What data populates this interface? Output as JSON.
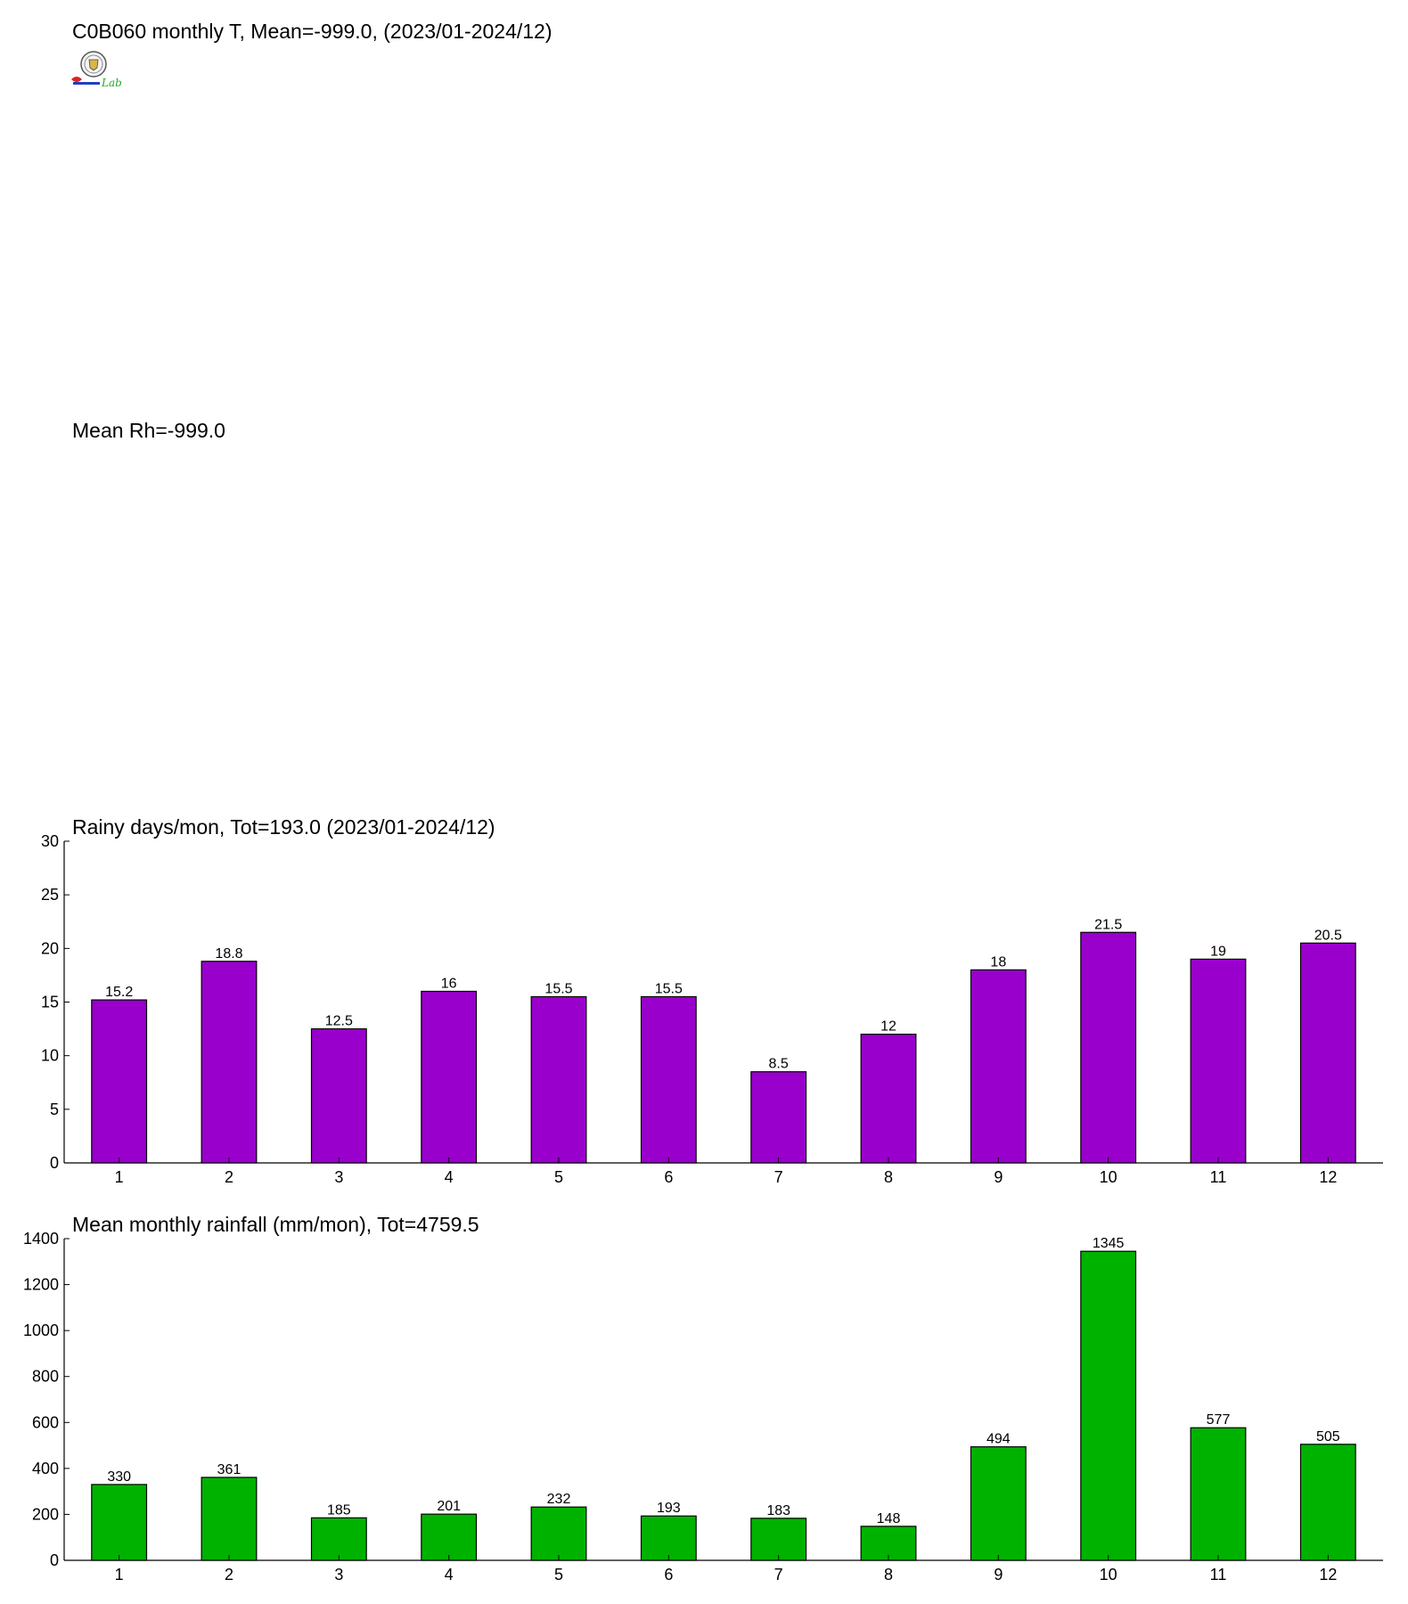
{
  "header": {
    "temp_title": "C0B060 monthly T, Mean=-999.0, (2023/01-2024/12)",
    "rh_title": "Mean Rh=-999.0",
    "logo_icon": "lab-seal-logo",
    "logo_text": "Lab"
  },
  "chart_data": [
    {
      "type": "bar",
      "title": "Rainy days/mon, Tot=193.0 (2023/01-2024/12)",
      "categories": [
        "1",
        "2",
        "3",
        "4",
        "5",
        "6",
        "7",
        "8",
        "9",
        "10",
        "11",
        "12"
      ],
      "values": [
        15.2,
        18.8,
        12.5,
        16,
        15.5,
        15.5,
        8.5,
        12,
        18,
        21.5,
        19,
        20.5
      ],
      "ylim": [
        0,
        30
      ],
      "yticks": [
        0,
        5,
        10,
        15,
        20,
        25,
        30
      ],
      "color": "#9900cc",
      "grid": false,
      "xlabel": "",
      "ylabel": ""
    },
    {
      "type": "bar",
      "title": "Mean monthly rainfall (mm/mon), Tot=4759.5",
      "categories": [
        "1",
        "2",
        "3",
        "4",
        "5",
        "6",
        "7",
        "8",
        "9",
        "10",
        "11",
        "12"
      ],
      "values": [
        330,
        361,
        185,
        201,
        232,
        193,
        183,
        148,
        494,
        1345,
        577,
        505
      ],
      "ylim": [
        0,
        1400
      ],
      "yticks": [
        0,
        200,
        400,
        600,
        800,
        1000,
        1200,
        1400
      ],
      "color": "#00b200",
      "grid": false,
      "xlabel": "",
      "ylabel": ""
    }
  ]
}
